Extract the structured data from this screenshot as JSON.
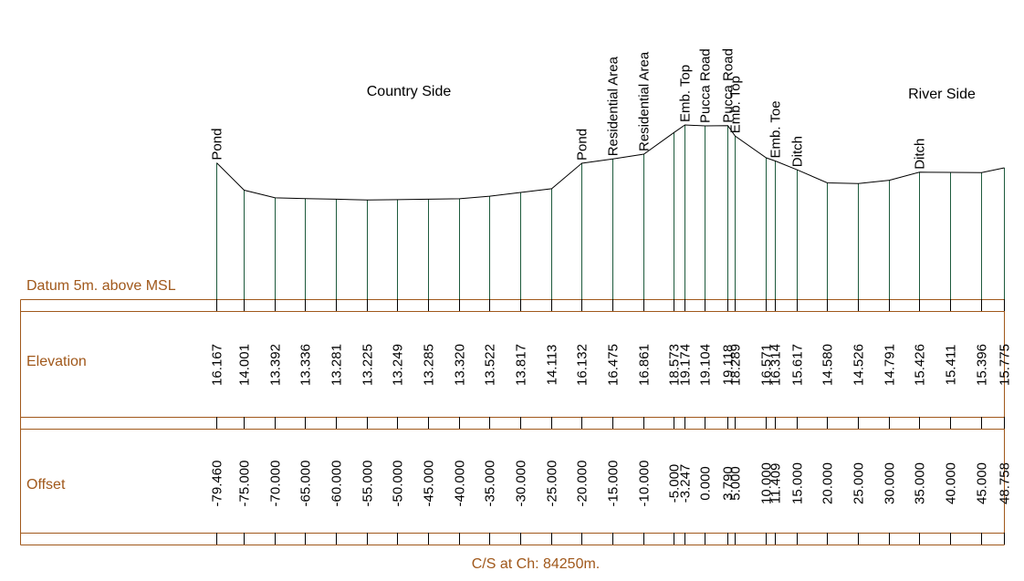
{
  "region_left": "Country Side",
  "region_right": "River Side",
  "datum": "Datum 5m. above MSL",
  "row_elevation_label": "Elevation",
  "row_offset_label": "Offset",
  "caption": "C/S at Ch: 84250m.",
  "colors": {
    "profile": "#000000",
    "verticals": "#1d5a3c",
    "grid": "#a0581b",
    "row_labels": "#a0581b"
  },
  "chart_data": {
    "type": "line",
    "points": [
      {
        "offset": -79.46,
        "elevation": 16.167,
        "offset_label": "-79.460",
        "elevation_label": "16.167",
        "feature": "Pond"
      },
      {
        "offset": -75.0,
        "elevation": 14.001,
        "offset_label": "-75.000",
        "elevation_label": "14.001",
        "feature": ""
      },
      {
        "offset": -70.0,
        "elevation": 13.392,
        "offset_label": "-70.000",
        "elevation_label": "13.392",
        "feature": ""
      },
      {
        "offset": -65.0,
        "elevation": 13.336,
        "offset_label": "-65.000",
        "elevation_label": "13.336",
        "feature": ""
      },
      {
        "offset": -60.0,
        "elevation": 13.281,
        "offset_label": "-60.000",
        "elevation_label": "13.281",
        "feature": ""
      },
      {
        "offset": -55.0,
        "elevation": 13.225,
        "offset_label": "-55.000",
        "elevation_label": "13.225",
        "feature": ""
      },
      {
        "offset": -50.0,
        "elevation": 13.249,
        "offset_label": "-50.000",
        "elevation_label": "13.249",
        "feature": ""
      },
      {
        "offset": -45.0,
        "elevation": 13.285,
        "offset_label": "-45.000",
        "elevation_label": "13.285",
        "feature": ""
      },
      {
        "offset": -40.0,
        "elevation": 13.32,
        "offset_label": "-40.000",
        "elevation_label": "13.320",
        "feature": ""
      },
      {
        "offset": -35.0,
        "elevation": 13.522,
        "offset_label": "-35.000",
        "elevation_label": "13.522",
        "feature": ""
      },
      {
        "offset": -30.0,
        "elevation": 13.817,
        "offset_label": "-30.000",
        "elevation_label": "13.817",
        "feature": ""
      },
      {
        "offset": -25.0,
        "elevation": 14.113,
        "offset_label": "-25.000",
        "elevation_label": "14.113",
        "feature": ""
      },
      {
        "offset": -20.0,
        "elevation": 16.132,
        "offset_label": "-20.000",
        "elevation_label": "16.132",
        "feature": "Pond"
      },
      {
        "offset": -15.0,
        "elevation": 16.475,
        "offset_label": "-15.000",
        "elevation_label": "16.475",
        "feature": "Residential Area"
      },
      {
        "offset": -10.0,
        "elevation": 16.861,
        "offset_label": "-10.000",
        "elevation_label": "16.861",
        "feature": "Residential Area"
      },
      {
        "offset": -5.0,
        "elevation": 18.573,
        "offset_label": "-5.000",
        "elevation_label": "18.573",
        "feature": ""
      },
      {
        "offset": -3.247,
        "elevation": 19.174,
        "offset_label": "-3.247",
        "elevation_label": "19.174",
        "feature": "Emb. Top"
      },
      {
        "offset": 0.0,
        "elevation": 19.104,
        "offset_label": "0.000",
        "elevation_label": "19.104",
        "feature": "Pucca Road"
      },
      {
        "offset": 3.79,
        "elevation": 19.118,
        "offset_label": "3.790",
        "elevation_label": "19.118",
        "feature": "Pucca Road"
      },
      {
        "offset": 5.0,
        "elevation": 18.289,
        "offset_label": "5.000",
        "elevation_label": "18.289",
        "feature": "Emb. Top"
      },
      {
        "offset": 10.0,
        "elevation": 16.571,
        "offset_label": "10.000",
        "elevation_label": "16.571",
        "feature": ""
      },
      {
        "offset": 11.409,
        "elevation": 16.314,
        "offset_label": "11.409",
        "elevation_label": "16.314",
        "feature": "Emb. Toe"
      },
      {
        "offset": 15.0,
        "elevation": 15.617,
        "offset_label": "15.000",
        "elevation_label": "15.617",
        "feature": "Ditch"
      },
      {
        "offset": 20.0,
        "elevation": 14.58,
        "offset_label": "20.000",
        "elevation_label": "14.580",
        "feature": ""
      },
      {
        "offset": 25.0,
        "elevation": 14.526,
        "offset_label": "25.000",
        "elevation_label": "14.526",
        "feature": ""
      },
      {
        "offset": 30.0,
        "elevation": 14.791,
        "offset_label": "30.000",
        "elevation_label": "14.791",
        "feature": ""
      },
      {
        "offset": 35.0,
        "elevation": 15.426,
        "offset_label": "35.000",
        "elevation_label": "15.426",
        "feature": "Ditch"
      },
      {
        "offset": 40.0,
        "elevation": 15.411,
        "offset_label": "40.000",
        "elevation_label": "15.411",
        "feature": ""
      },
      {
        "offset": 45.0,
        "elevation": 15.396,
        "offset_label": "45.000",
        "elevation_label": "15.396",
        "feature": ""
      },
      {
        "offset": 48.758,
        "elevation": 15.775,
        "offset_label": "48.758",
        "elevation_label": "15.775",
        "feature": ""
      }
    ]
  }
}
